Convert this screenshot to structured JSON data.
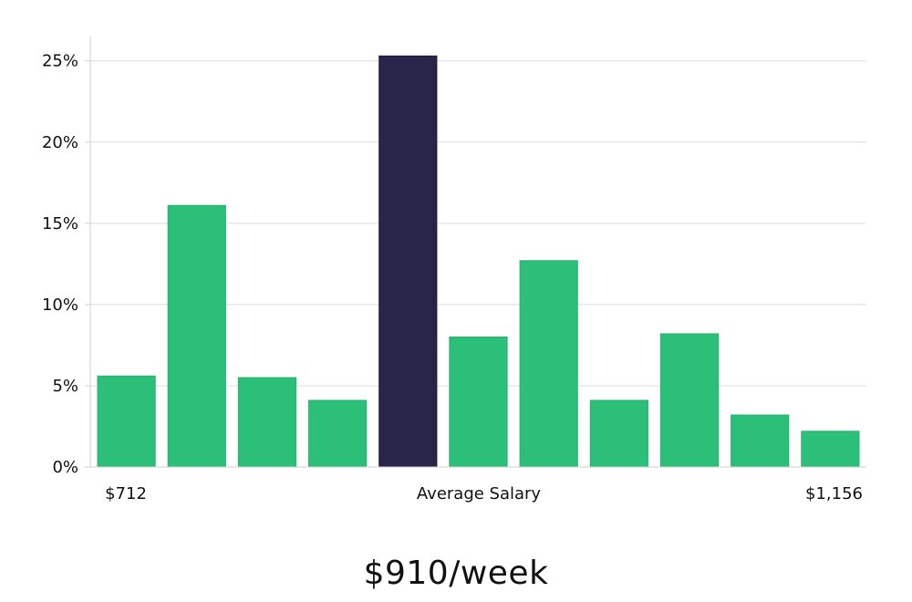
{
  "chart_data": {
    "type": "bar",
    "values": [
      5.6,
      16.1,
      5.5,
      4.1,
      25.3,
      8.0,
      12.7,
      4.1,
      8.2,
      3.2,
      2.2
    ],
    "highlight_index": 4,
    "ylim": [
      0,
      26.5
    ],
    "y_ticks": [
      {
        "value": 0,
        "label": "0%"
      },
      {
        "value": 5,
        "label": "5%"
      },
      {
        "value": 10,
        "label": "10%"
      },
      {
        "value": 15,
        "label": "15%"
      },
      {
        "value": 20,
        "label": "20%"
      },
      {
        "value": 25,
        "label": "25%"
      }
    ],
    "x_labels": {
      "left": "$712",
      "center": "Average Salary",
      "right": "$1,156"
    },
    "grid": true,
    "colors": {
      "bar": "#2bbf77",
      "bar_edge": "#22b36c",
      "highlight": "#28244a",
      "highlight_edge": "#1b1838"
    }
  },
  "caption": "$910/week"
}
